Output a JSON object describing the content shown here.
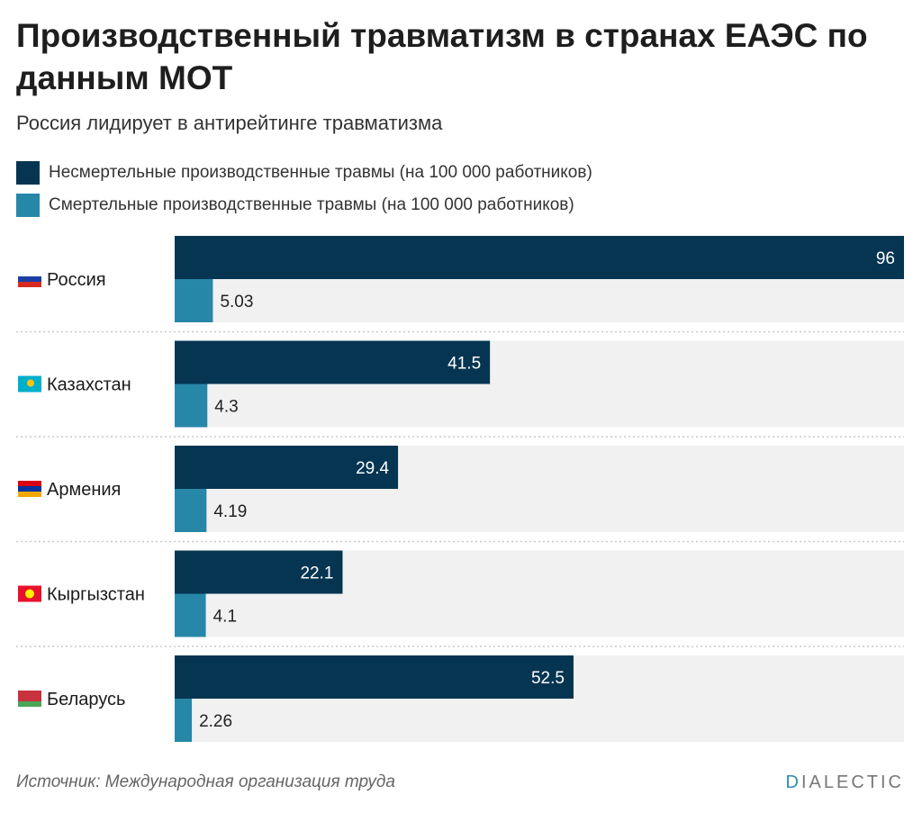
{
  "chart_data": {
    "type": "bar",
    "orientation": "horizontal",
    "title": "Производственный травматизм в странах ЕАЭС по данным МОТ",
    "subtitle": "Россия лидирует в антирейтинге травматизма",
    "categories": [
      "Россия",
      "Казахстан",
      "Армения",
      "Кыргызстан",
      "Беларусь"
    ],
    "series": [
      {
        "name": "Несмертельные производственные травмы (на 100 000 работников)",
        "color": "#063552",
        "values": [
          96,
          41.5,
          29.4,
          22.1,
          52.5
        ],
        "labels": [
          "96",
          "41.5",
          "29.4",
          "22.1",
          "52.5"
        ]
      },
      {
        "name": "Смертельные производственные травмы (на 100 000 работников)",
        "color": "#2787a8",
        "values": [
          5.03,
          4.3,
          4.19,
          4.1,
          2.26
        ],
        "labels": [
          "5.03",
          "4.3",
          "4.19",
          "4.1",
          "2.26"
        ]
      }
    ],
    "xlim": [
      0,
      96
    ],
    "legend_position": "top-left",
    "background_color": "#f1f1f1",
    "source": "Источник: Международная организация труда"
  },
  "brand": {
    "first_letter": "D",
    "rest": "IALECTIC",
    "accent_color": "#2c8fae"
  }
}
